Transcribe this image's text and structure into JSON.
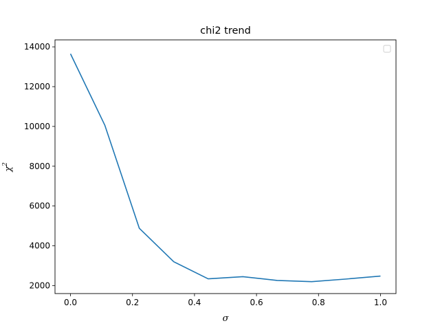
{
  "chart_data": {
    "type": "line",
    "title": "chi2 trend",
    "xlabel": "σ",
    "ylabel_base": "χ",
    "ylabel_sup": "2",
    "xlim": [
      -0.05,
      1.05
    ],
    "ylim": [
      1600,
      14350
    ],
    "xticks": [
      0.0,
      0.2,
      0.4,
      0.6,
      0.8,
      1.0
    ],
    "xtick_labels": [
      "0.0",
      "0.2",
      "0.4",
      "0.6",
      "0.8",
      "1.0"
    ],
    "yticks": [
      2000,
      4000,
      6000,
      8000,
      10000,
      12000,
      14000
    ],
    "ytick_labels": [
      "2000",
      "4000",
      "6000",
      "8000",
      "10000",
      "12000",
      "14000"
    ],
    "grid": false,
    "legend": {
      "placement": "upper-right",
      "entries": []
    },
    "series": [
      {
        "color": "#1f77b4",
        "x": [
          0.0,
          0.111,
          0.222,
          0.333,
          0.444,
          0.556,
          0.667,
          0.778,
          0.889,
          1.0
        ],
        "y": [
          13650,
          10050,
          4880,
          3200,
          2340,
          2450,
          2260,
          2200,
          2330,
          2480
        ]
      }
    ]
  }
}
